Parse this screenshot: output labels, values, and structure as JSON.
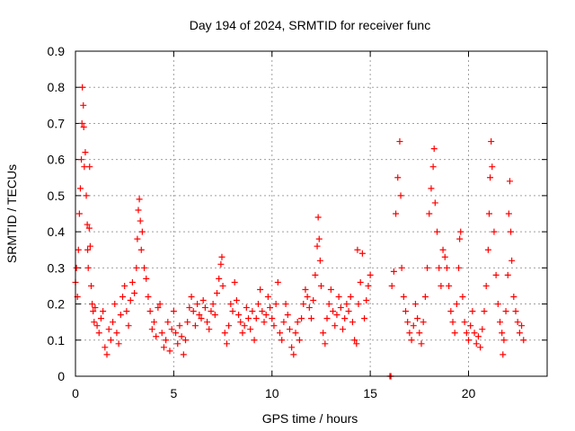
{
  "chart_data": {
    "type": "scatter",
    "title": "Day 194 of 2024, SRMTID for receiver func",
    "xlabel": "GPS time / hours",
    "ylabel": "SRMTID / TECUs",
    "xlim": [
      0,
      24
    ],
    "ylim": [
      0,
      0.9
    ],
    "xticks": [
      0,
      5,
      10,
      15,
      20
    ],
    "xtick_labels": [
      "0",
      "5",
      "10",
      "15",
      "20"
    ],
    "yticks": [
      0,
      0.1,
      0.2,
      0.3,
      0.4,
      0.5,
      0.6,
      0.7,
      0.8,
      0.9
    ],
    "ytick_labels": [
      "0",
      "0.1",
      "0.2",
      "0.3",
      "0.4",
      "0.5",
      "0.6",
      "0.7",
      "0.8",
      "0.9"
    ],
    "grid": true,
    "marker": "plus",
    "series_color": "#ff0000",
    "series": [
      {
        "name": "SRMTID",
        "points": [
          [
            0.0,
            0.26
          ],
          [
            0.05,
            0.3
          ],
          [
            0.1,
            0.22
          ],
          [
            0.15,
            0.35
          ],
          [
            0.2,
            0.45
          ],
          [
            0.25,
            0.52
          ],
          [
            0.3,
            0.6
          ],
          [
            0.33,
            0.7
          ],
          [
            0.35,
            0.8
          ],
          [
            0.4,
            0.75
          ],
          [
            0.42,
            0.69
          ],
          [
            0.45,
            0.58
          ],
          [
            0.5,
            0.62
          ],
          [
            0.55,
            0.5
          ],
          [
            0.6,
            0.42
          ],
          [
            0.62,
            0.35
          ],
          [
            0.65,
            0.3
          ],
          [
            0.7,
            0.41
          ],
          [
            0.72,
            0.58
          ],
          [
            0.75,
            0.36
          ],
          [
            0.8,
            0.25
          ],
          [
            0.85,
            0.2
          ],
          [
            0.9,
            0.18
          ],
          [
            0.95,
            0.15
          ],
          [
            1.0,
            0.19
          ],
          [
            1.1,
            0.14
          ],
          [
            1.2,
            0.12
          ],
          [
            1.3,
            0.16
          ],
          [
            1.4,
            0.18
          ],
          [
            1.5,
            0.08
          ],
          [
            1.6,
            0.06
          ],
          [
            1.7,
            0.13
          ],
          [
            1.8,
            0.1
          ],
          [
            1.9,
            0.15
          ],
          [
            2.0,
            0.2
          ],
          [
            2.1,
            0.12
          ],
          [
            2.2,
            0.09
          ],
          [
            2.3,
            0.17
          ],
          [
            2.4,
            0.22
          ],
          [
            2.5,
            0.25
          ],
          [
            2.6,
            0.18
          ],
          [
            2.7,
            0.14
          ],
          [
            2.8,
            0.21
          ],
          [
            2.9,
            0.26
          ],
          [
            3.0,
            0.23
          ],
          [
            3.1,
            0.3
          ],
          [
            3.15,
            0.38
          ],
          [
            3.2,
            0.46
          ],
          [
            3.25,
            0.49
          ],
          [
            3.3,
            0.43
          ],
          [
            3.35,
            0.35
          ],
          [
            3.4,
            0.4
          ],
          [
            3.5,
            0.3
          ],
          [
            3.6,
            0.27
          ],
          [
            3.7,
            0.22
          ],
          [
            3.8,
            0.18
          ],
          [
            3.9,
            0.13
          ],
          [
            4.0,
            0.15
          ],
          [
            4.1,
            0.11
          ],
          [
            4.2,
            0.19
          ],
          [
            4.3,
            0.2
          ],
          [
            4.4,
            0.12
          ],
          [
            4.5,
            0.08
          ],
          [
            4.6,
            0.1
          ],
          [
            4.7,
            0.15
          ],
          [
            4.8,
            0.07
          ],
          [
            4.9,
            0.13
          ],
          [
            5.0,
            0.18
          ],
          [
            5.1,
            0.12
          ],
          [
            5.2,
            0.09
          ],
          [
            5.3,
            0.14
          ],
          [
            5.4,
            0.11
          ],
          [
            5.5,
            0.06
          ],
          [
            5.6,
            0.1
          ],
          [
            5.7,
            0.15
          ],
          [
            5.8,
            0.19
          ],
          [
            5.9,
            0.22
          ],
          [
            6.0,
            0.18
          ],
          [
            6.1,
            0.14
          ],
          [
            6.2,
            0.2
          ],
          [
            6.3,
            0.17
          ],
          [
            6.4,
            0.16
          ],
          [
            6.5,
            0.21
          ],
          [
            6.6,
            0.19
          ],
          [
            6.7,
            0.15
          ],
          [
            6.8,
            0.13
          ],
          [
            6.9,
            0.18
          ],
          [
            7.0,
            0.2
          ],
          [
            7.1,
            0.17
          ],
          [
            7.2,
            0.23
          ],
          [
            7.3,
            0.27
          ],
          [
            7.4,
            0.31
          ],
          [
            7.45,
            0.33
          ],
          [
            7.5,
            0.25
          ],
          [
            7.6,
            0.12
          ],
          [
            7.7,
            0.09
          ],
          [
            7.8,
            0.14
          ],
          [
            7.9,
            0.2
          ],
          [
            8.0,
            0.18
          ],
          [
            8.1,
            0.26
          ],
          [
            8.2,
            0.21
          ],
          [
            8.3,
            0.17
          ],
          [
            8.4,
            0.15
          ],
          [
            8.5,
            0.12
          ],
          [
            8.6,
            0.14
          ],
          [
            8.7,
            0.19
          ],
          [
            8.8,
            0.16
          ],
          [
            8.9,
            0.13
          ],
          [
            9.0,
            0.18
          ],
          [
            9.1,
            0.1
          ],
          [
            9.2,
            0.16
          ],
          [
            9.3,
            0.2
          ],
          [
            9.4,
            0.24
          ],
          [
            9.5,
            0.18
          ],
          [
            9.6,
            0.15
          ],
          [
            9.7,
            0.17
          ],
          [
            9.8,
            0.22
          ],
          [
            9.9,
            0.19
          ],
          [
            10.0,
            0.16
          ],
          [
            10.1,
            0.14
          ],
          [
            10.2,
            0.2
          ],
          [
            10.3,
            0.26
          ],
          [
            10.4,
            0.12
          ],
          [
            10.5,
            0.1
          ],
          [
            10.6,
            0.15
          ],
          [
            10.7,
            0.2
          ],
          [
            10.8,
            0.17
          ],
          [
            10.9,
            0.13
          ],
          [
            11.0,
            0.08
          ],
          [
            11.1,
            0.06
          ],
          [
            11.2,
            0.12
          ],
          [
            11.3,
            0.15
          ],
          [
            11.4,
            0.1
          ],
          [
            11.5,
            0.16
          ],
          [
            11.6,
            0.2
          ],
          [
            11.7,
            0.24
          ],
          [
            11.8,
            0.22
          ],
          [
            11.9,
            0.19
          ],
          [
            12.0,
            0.16
          ],
          [
            12.1,
            0.21
          ],
          [
            12.2,
            0.28
          ],
          [
            12.3,
            0.36
          ],
          [
            12.35,
            0.44
          ],
          [
            12.4,
            0.38
          ],
          [
            12.45,
            0.32
          ],
          [
            12.5,
            0.25
          ],
          [
            12.6,
            0.12
          ],
          [
            12.7,
            0.09
          ],
          [
            12.8,
            0.16
          ],
          [
            12.9,
            0.2
          ],
          [
            13.0,
            0.24
          ],
          [
            13.1,
            0.18
          ],
          [
            13.2,
            0.14
          ],
          [
            13.3,
            0.17
          ],
          [
            13.4,
            0.22
          ],
          [
            13.5,
            0.19
          ],
          [
            13.6,
            0.13
          ],
          [
            13.7,
            0.16
          ],
          [
            13.8,
            0.2
          ],
          [
            13.9,
            0.18
          ],
          [
            14.0,
            0.22
          ],
          [
            14.1,
            0.15
          ],
          [
            14.2,
            0.1
          ],
          [
            14.3,
            0.09
          ],
          [
            14.35,
            0.35
          ],
          [
            14.4,
            0.2
          ],
          [
            14.5,
            0.26
          ],
          [
            14.6,
            0.34
          ],
          [
            14.7,
            0.16
          ],
          [
            14.8,
            0.21
          ],
          [
            14.9,
            0.25
          ],
          [
            15.0,
            0.28
          ],
          [
            16.0,
            0.0
          ],
          [
            16.05,
            0.0
          ],
          [
            16.1,
            0.25
          ],
          [
            16.2,
            0.29
          ],
          [
            16.3,
            0.45
          ],
          [
            16.4,
            0.55
          ],
          [
            16.5,
            0.65
          ],
          [
            16.55,
            0.5
          ],
          [
            16.6,
            0.3
          ],
          [
            16.7,
            0.22
          ],
          [
            16.8,
            0.18
          ],
          [
            16.9,
            0.15
          ],
          [
            17.0,
            0.12
          ],
          [
            17.1,
            0.1
          ],
          [
            17.2,
            0.14
          ],
          [
            17.3,
            0.2
          ],
          [
            17.4,
            0.16
          ],
          [
            17.5,
            0.12
          ],
          [
            17.6,
            0.09
          ],
          [
            17.7,
            0.15
          ],
          [
            17.8,
            0.22
          ],
          [
            17.9,
            0.3
          ],
          [
            18.0,
            0.45
          ],
          [
            18.1,
            0.52
          ],
          [
            18.2,
            0.58
          ],
          [
            18.25,
            0.63
          ],
          [
            18.3,
            0.48
          ],
          [
            18.4,
            0.4
          ],
          [
            18.5,
            0.3
          ],
          [
            18.6,
            0.25
          ],
          [
            18.7,
            0.35
          ],
          [
            18.8,
            0.33
          ],
          [
            18.9,
            0.3
          ],
          [
            19.0,
            0.25
          ],
          [
            19.1,
            0.18
          ],
          [
            19.2,
            0.15
          ],
          [
            19.3,
            0.12
          ],
          [
            19.4,
            0.2
          ],
          [
            19.5,
            0.3
          ],
          [
            19.55,
            0.38
          ],
          [
            19.6,
            0.4
          ],
          [
            19.7,
            0.22
          ],
          [
            19.8,
            0.15
          ],
          [
            19.9,
            0.12
          ],
          [
            20.0,
            0.1
          ],
          [
            20.1,
            0.14
          ],
          [
            20.2,
            0.18
          ],
          [
            20.3,
            0.12
          ],
          [
            20.4,
            0.09
          ],
          [
            20.5,
            0.11
          ],
          [
            20.6,
            0.08
          ],
          [
            20.7,
            0.13
          ],
          [
            20.8,
            0.18
          ],
          [
            20.9,
            0.25
          ],
          [
            21.0,
            0.35
          ],
          [
            21.05,
            0.45
          ],
          [
            21.1,
            0.55
          ],
          [
            21.15,
            0.65
          ],
          [
            21.2,
            0.58
          ],
          [
            21.3,
            0.4
          ],
          [
            21.4,
            0.28
          ],
          [
            21.5,
            0.2
          ],
          [
            21.6,
            0.15
          ],
          [
            21.7,
            0.12
          ],
          [
            21.75,
            0.06
          ],
          [
            21.8,
            0.1
          ],
          [
            21.9,
            0.18
          ],
          [
            22.0,
            0.28
          ],
          [
            22.05,
            0.45
          ],
          [
            22.1,
            0.54
          ],
          [
            22.15,
            0.4
          ],
          [
            22.2,
            0.32
          ],
          [
            22.3,
            0.22
          ],
          [
            22.4,
            0.18
          ],
          [
            22.5,
            0.15
          ],
          [
            22.6,
            0.12
          ],
          [
            22.7,
            0.14
          ],
          [
            22.8,
            0.1
          ]
        ]
      }
    ]
  }
}
